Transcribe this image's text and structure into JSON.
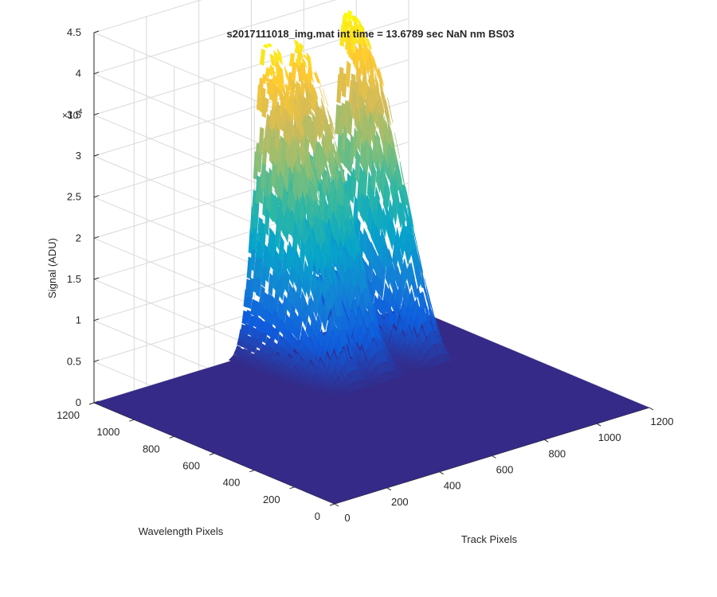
{
  "chart_data": {
    "type": "surface",
    "title": "s2017111018_img.mat int time = 13.6789 sec  NaN nm BS03",
    "xlabel": "Track Pixels",
    "ylabel": "Wavelength Pixels",
    "zlabel": "Signal (ADU)",
    "z_multiplier_label": "×10",
    "z_multiplier_exponent": "4",
    "xlim": [
      0,
      1200
    ],
    "ylim": [
      0,
      1200
    ],
    "zlim": [
      0,
      45000
    ],
    "x_ticks": [
      "0",
      "200",
      "400",
      "600",
      "800",
      "1000",
      "1200"
    ],
    "y_ticks": [
      "0",
      "200",
      "400",
      "600",
      "800",
      "1000",
      "1200"
    ],
    "z_ticks": [
      "0",
      "0.5",
      "1",
      "1.5",
      "2",
      "2.5",
      "3",
      "3.5",
      "4",
      "4.5"
    ],
    "grid": true,
    "colormap": "parula",
    "colors": {
      "floor": "#352a87",
      "low": "#0f5cdd",
      "mid_low": "#1481d6",
      "mid": "#06a4ca",
      "mid_high": "#2eb7a4",
      "high": "#87bf77",
      "higher": "#d1bb59",
      "peak": "#f9fb0e"
    },
    "peaks": [
      {
        "x": 650,
        "y": 1100,
        "z": 35000
      },
      {
        "x": 760,
        "y": 1080,
        "z": 34000
      },
      {
        "x": 960,
        "y": 1060,
        "z": 37000
      }
    ]
  }
}
